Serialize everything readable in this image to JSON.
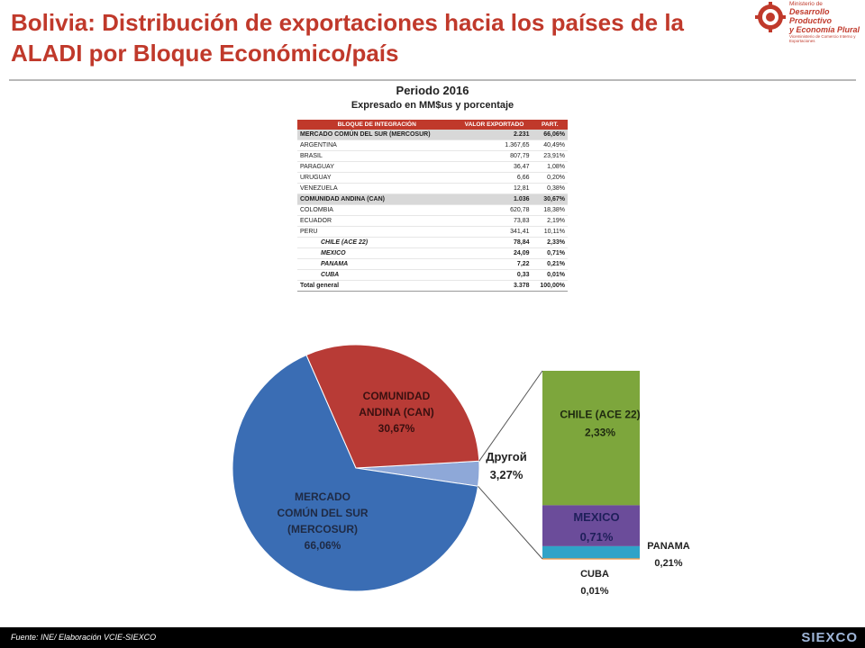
{
  "header": {
    "title": "Bolivia: Distribución de exportaciones hacia los países de la ALADI por Bloque Económico/país",
    "logo": {
      "line1": "Ministerio de",
      "line2": "Desarrollo Productivo",
      "line3": "y Economía Plural",
      "line4": "Viceministerio de Comercio Interno y Exportaciones"
    }
  },
  "subtitle": {
    "period": "Periodo 2016",
    "units": "Expresado en MM$us y porcentaje"
  },
  "table": {
    "headers": [
      "BLOQUE DE INTEGRACIÓN",
      "VALOR EXPORTADO",
      "PART."
    ],
    "rows": [
      {
        "name": "MERCADO COMÚN DEL SUR (MERCOSUR)",
        "value": "2.231",
        "pct": "66,06%",
        "kind": "block"
      },
      {
        "name": "ARGENTINA",
        "value": "1.367,65",
        "pct": "40,49%",
        "kind": "country"
      },
      {
        "name": "BRASIL",
        "value": "807,79",
        "pct": "23,91%",
        "kind": "country"
      },
      {
        "name": "PARAGUAY",
        "value": "36,47",
        "pct": "1,08%",
        "kind": "country"
      },
      {
        "name": "URUGUAY",
        "value": "6,66",
        "pct": "0,20%",
        "kind": "country"
      },
      {
        "name": "VENEZUELA",
        "value": "12,81",
        "pct": "0,38%",
        "kind": "country"
      },
      {
        "name": "COMUNIDAD ANDINA (CAN)",
        "value": "1.036",
        "pct": "30,67%",
        "kind": "block"
      },
      {
        "name": "COLOMBIA",
        "value": "620,78",
        "pct": "18,38%",
        "kind": "country"
      },
      {
        "name": "ECUADOR",
        "value": "73,83",
        "pct": "2,19%",
        "kind": "country"
      },
      {
        "name": "PERU",
        "value": "341,41",
        "pct": "10,11%",
        "kind": "country"
      },
      {
        "name": "CHILE (ACE 22)",
        "value": "78,84",
        "pct": "2,33%",
        "kind": "other"
      },
      {
        "name": "MEXICO",
        "value": "24,09",
        "pct": "0,71%",
        "kind": "other"
      },
      {
        "name": "PANAMA",
        "value": "7,22",
        "pct": "0,21%",
        "kind": "other"
      },
      {
        "name": "CUBA",
        "value": "0,33",
        "pct": "0,01%",
        "kind": "other"
      },
      {
        "name": "Total general",
        "value": "3.378",
        "pct": "100,00%",
        "kind": "total"
      }
    ]
  },
  "chart_data": {
    "type": "pie",
    "pie": {
      "slices": [
        {
          "label": "MERCADO COMÚN DEL SUR (MERCOSUR)",
          "label_lines": [
            "MERCADO",
            "COMÚN DEL SUR",
            "(MERCOSUR)"
          ],
          "value": 66.06,
          "value_text": "66,06%",
          "color": "#3a6db4"
        },
        {
          "label": "COMUNIDAD ANDINA (CAN)",
          "label_lines": [
            "COMUNIDAD",
            "ANDINA (CAN)"
          ],
          "value": 30.67,
          "value_text": "30,67%",
          "color": "#b83b36"
        },
        {
          "label": "Другой",
          "label_lines": [
            "Другой"
          ],
          "value": 3.27,
          "value_text": "3,27%",
          "color": "#8ea8d8"
        }
      ]
    },
    "breakdown_bar": {
      "segments": [
        {
          "label": "CHILE (ACE 22)",
          "value": 2.33,
          "value_text": "2,33%",
          "color": "#7da63c"
        },
        {
          "label": "MEXICO",
          "value": 0.71,
          "value_text": "0,71%",
          "color": "#6b4c9a"
        },
        {
          "label": "PANAMA",
          "value": 0.21,
          "value_text": "0,21%",
          "color": "#2fa3c8"
        },
        {
          "label": "CUBA",
          "value": 0.01,
          "value_text": "0,01%",
          "color": "#f0913a"
        }
      ]
    }
  },
  "footer": {
    "source": "Fuente: INE/ Elaboración VCIE-SIEXCO",
    "logo": "SIEXCO"
  }
}
